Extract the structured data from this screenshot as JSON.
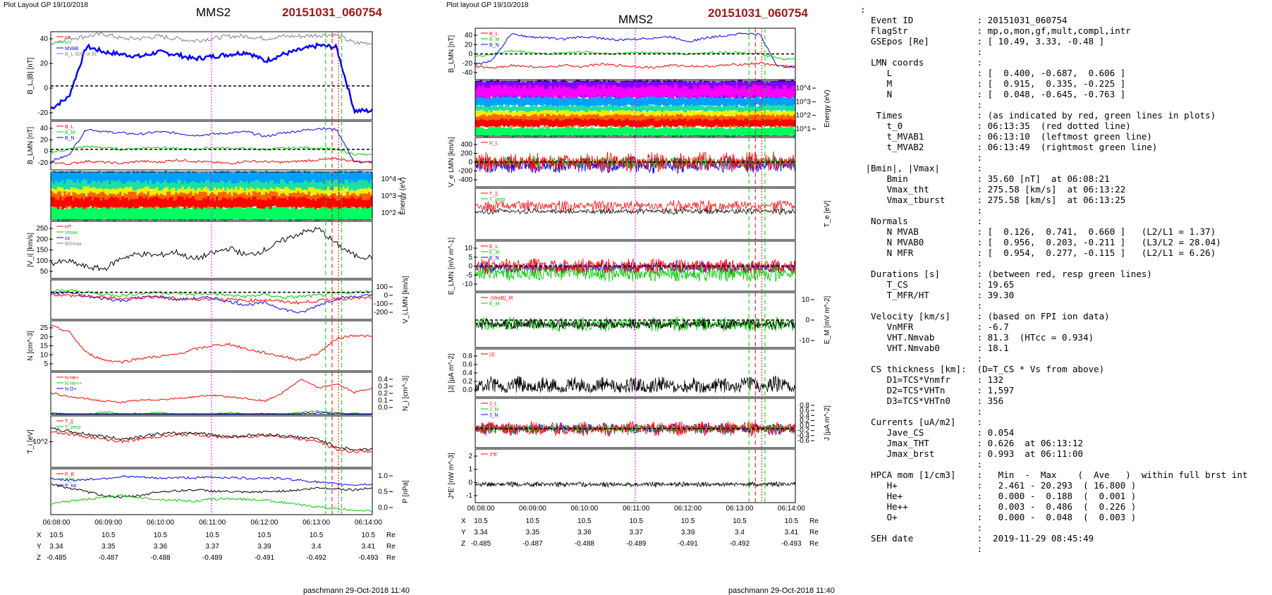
{
  "left_page": {
    "layout_label": "Plot Layout GP 19/10/2018",
    "spacecraft": "MMS2",
    "event": "20151031_060754",
    "footer": "paschmann 29-Oct-2018 11:40",
    "time_ticks": [
      "06:08:00",
      "06:09:00",
      "06:10:00",
      "06:11:00",
      "06:12:00",
      "06:13:00",
      "06:14:00"
    ],
    "pos_labels": [
      "X",
      "Y",
      "Z"
    ],
    "pos_unit": "Re",
    "pos_values": {
      "X": [
        "10.5",
        "10.5",
        "10.5",
        "10.5",
        "10.5",
        "10.5",
        "10.5"
      ],
      "Y": [
        "3.34",
        "3.35",
        "3.36",
        "3.37",
        "3.39",
        "3.4",
        "3.41"
      ],
      "Z": [
        "-0.485",
        "-0.487",
        "-0.488",
        "-0.489",
        "-0.491",
        "-0.492",
        "-0.493"
      ]
    }
  },
  "right_page": {
    "layout_label": "Plot layout GP 19/10/2018",
    "spacecraft": "MMS2",
    "event": "20151031_060754",
    "footer": "paschmann 29-Oct-2018 11:40",
    "time_ticks": [
      "06:08:00",
      "06:09:00",
      "06:10:00",
      "06:11:00",
      "06:12:00",
      "06:13:00",
      "06:14:00"
    ],
    "pos_labels": [
      "X",
      "Y",
      "Z"
    ],
    "pos_unit": "Re",
    "pos_values": {
      "X": [
        "10.5",
        "10.5",
        "10.5",
        "10.5",
        "10.5",
        "10.5",
        "10.5"
      ],
      "Y": [
        "3.34",
        "3.35",
        "3.36",
        "3.37",
        "3.39",
        "3.4",
        "3.41"
      ],
      "Z": [
        "-0.485",
        "-0.487",
        "-0.488",
        "-0.489",
        "-0.491",
        "-0.492",
        "-0.493"
      ]
    }
  },
  "info_lines": [
    ":",
    "  Event ID            : 20151031_060754",
    "  FlagStr             : mp,o,mon,gf,mult,compl,intr",
    "  GSEpos [Re]         : [ 10.49, 3.33, -0.48 ]",
    "                      :",
    "  LMN coords          :",
    "     L                : [  0.400, -0.687,  0.606 ]",
    "     M                : [  0.915,  0.335, -0.225 ]",
    "     N                : [  0.048, -0.645, -0.763 ]",
    "                      :",
    "   Times              : (as indicated by red, green lines in plots)",
    "     t_0              : 06:13:35  (red dotted line)",
    "     t_MVAB1          : 06:13:10  (leftmost green line)",
    "     t_MVAB2          : 06:13:49  (rightmost green line)",
    "                      :",
    " |Bmin|, |Vmax|       :",
    "     Bmin             : 35.60 [nT]  at 06:08:21",
    "     Vmax_tht         : 275.58 [km/s]  at 06:13:22",
    "     Vmax_tburst      : 275.58 [km/s]  at 06:13:25",
    "                      :",
    "  Normals             :",
    "     N MVAB           : [  0.126,  0.741,  0.660 ]   (L2/L1 = 1.37)",
    "     N MVAB0          : [  0.956,  0.203, -0.211 ]   (L3/L2 = 28.04)",
    "     N MFR            : [  0.954,  0.277, -0.115 ]   (L2/L1 = 6.26)",
    "                      :",
    "  Durations [s]       : (between red, resp green lines)",
    "     T_CS             : 19.65",
    "     T_MFR/HT         : 39.30",
    "                      :",
    "  Velocity [km/s]     : (based on FPI ion data)",
    "     VnMFR            : -6.7",
    "     VHT.Nmvab        : 81.3  (HTcc = 0.934)",
    "     VHT.Nmvab0       : 18.1",
    "                      :",
    "  CS thickness [km]:  (D=T_CS * Vs from above)",
    "     D1=TCS*Vnmfr     : 132",
    "     D2=TCS*VHTn      : 1,597",
    "     D3=TCS*VHTn0     : 356",
    "                      :",
    "  Currents [uA/m2]    :",
    "     Jave_CS          : 0.054",
    "     Jmax_THT         : 0.626  at 06:13:12",
    "     Jmax_brst        : 0.993  at 06:11:00",
    "                      :",
    "  HPCA mom [1/cm3]    :   Min  -  Max    (  Ave   )  within full brst int",
    "     H+               :   2.461 - 20.293  ( 16.800 )",
    "     He+              :   0.000 -  0.188  (  0.001 )",
    "     He++             :   0.003 -  0.486  (  0.226 )",
    "     O+               :   0.000 -  0.048  (  0.003 )",
    "                      :",
    "  SEH date            :  2019-11-29 08:45:49",
    "                      :"
  ],
  "colors": {
    "event_red": "#a01818",
    "black": "#000000",
    "blue": "#0000ff",
    "green": "#00cc00",
    "red": "#ff0000",
    "gray": "#808080",
    "magenta": "#ff00ff"
  },
  "chart_data": [
    {
      "panel": "left-1",
      "type": "line",
      "ylabel": "B_L,|B| [nT]",
      "yticks": [
        "40",
        "20",
        "0",
        "-20"
      ],
      "legend": [
        "cs",
        "HT",
        "MVAB",
        "B_L 50% of BL"
      ],
      "series": [
        {
          "name": "BL",
          "color": "#0000ff",
          "values": [
            -20,
            -10,
            35,
            30,
            28,
            26,
            30,
            28,
            24,
            26,
            28,
            30,
            22,
            28,
            32,
            36,
            34,
            -22,
            -22
          ]
        },
        {
          "name": "|B|",
          "color": "#808080",
          "values": [
            38,
            42,
            44,
            46,
            42,
            42,
            44,
            42,
            40,
            42,
            44,
            44,
            42,
            44,
            44,
            45,
            45,
            38,
            38
          ]
        }
      ],
      "ylim": [
        -30,
        48
      ]
    },
    {
      "panel": "left-2",
      "type": "line",
      "ylabel": "B_LMN [nT]",
      "yticks": [
        "40",
        "20",
        "0",
        "-20"
      ],
      "legend": [
        "B_L",
        "B_M",
        "B_N"
      ],
      "series": [
        {
          "name": "B_L",
          "color": "#0000ff",
          "values": [
            -20,
            -10,
            35,
            30,
            28,
            26,
            30,
            28,
            24,
            26,
            28,
            30,
            22,
            28,
            32,
            36,
            34,
            -22,
            -22
          ]
        },
        {
          "name": "B_M",
          "color": "#00cc00",
          "values": [
            -5,
            0,
            5,
            3,
            0,
            2,
            4,
            1,
            0,
            3,
            2,
            1,
            0,
            2,
            3,
            2,
            0,
            -8,
            -10
          ]
        },
        {
          "name": "B_N",
          "color": "#ff0000",
          "values": [
            -22,
            -25,
            -20,
            -22,
            -24,
            -20,
            -22,
            -18,
            -20,
            -22,
            -24,
            -20,
            -21,
            -22,
            -20,
            -18,
            -16,
            -20,
            -22
          ]
        }
      ],
      "ylim": [
        -35,
        48
      ]
    },
    {
      "panel": "left-3",
      "type": "heatmap",
      "ylabel": "Energy (eV)",
      "yticks": [
        "10^4",
        "10^3",
        "10^2"
      ]
    },
    {
      "panel": "left-4",
      "type": "line",
      "ylabel": "|V_i| [km/s]",
      "yticks": [
        "250",
        "200",
        "150",
        "100",
        "50"
      ],
      "legend": [
        "HT",
        "Vmax",
        "cs",
        "tbVmax"
      ],
      "series": [
        {
          "name": "|Vi|",
          "color": "#000000",
          "values": [
            80,
            90,
            60,
            50,
            110,
            130,
            120,
            140,
            100,
            130,
            160,
            120,
            150,
            200,
            240,
            260,
            180,
            120,
            110
          ]
        }
      ],
      "ylim": [
        0,
        300
      ]
    },
    {
      "panel": "left-5",
      "type": "line",
      "ylabel": "V_i,LMN [km/s]",
      "yticks": [
        "100",
        "0",
        "-100",
        "-200"
      ],
      "series": [
        {
          "name": "V_L",
          "color": "#0000ff",
          "values": [
            -10,
            0,
            -40,
            -60,
            -80,
            -50,
            -40,
            -70,
            -60,
            -50,
            -90,
            -120,
            -100,
            -160,
            -200,
            -120,
            -60,
            -40,
            -30
          ]
        },
        {
          "name": "V_M",
          "color": "#00cc00",
          "values": [
            10,
            20,
            0,
            -20,
            -30,
            -10,
            0,
            -10,
            -20,
            -10,
            -30,
            -40,
            -20,
            -50,
            -40,
            -30,
            -10,
            0,
            10
          ]
        },
        {
          "name": "V_N",
          "color": "#ff0000",
          "values": [
            -20,
            -30,
            -40,
            -50,
            -60,
            -50,
            -40,
            -60,
            -70,
            -60,
            -70,
            -80,
            -70,
            -90,
            -100,
            -80,
            -60,
            -60,
            -50
          ]
        }
      ],
      "ylim": [
        -260,
        120
      ]
    },
    {
      "panel": "left-6",
      "type": "line",
      "ylabel": "N [cm^-3]",
      "yticks": [
        "25",
        "20",
        "15",
        "10",
        "5"
      ],
      "series": [
        {
          "name": "N",
          "color": "#ff0000",
          "values": [
            25,
            22,
            10,
            6,
            5,
            7,
            8,
            9,
            12,
            14,
            15,
            12,
            10,
            8,
            6,
            10,
            18,
            20,
            19
          ]
        }
      ],
      "ylim": [
        0,
        28
      ]
    },
    {
      "panel": "left-7",
      "type": "line",
      "ylabel": "N_i [cm^-3]",
      "yticks": [
        "0.4",
        "0.3",
        "0.2",
        "0.1",
        "0.0"
      ],
      "legend": [
        "N He+",
        "N He++",
        "N O+"
      ],
      "series": [
        {
          "name": "N He+",
          "color": "#00cc00",
          "values": [
            0.02,
            0.0,
            0.0,
            0.03,
            0.0,
            0.0,
            0.02,
            0.0,
            0.0,
            0.0,
            0.02,
            0.0,
            0.01,
            0.0,
            0.03,
            0.04,
            0.02,
            0.01,
            0.0
          ]
        },
        {
          "name": "N He++",
          "color": "#ff0000",
          "values": [
            0.25,
            0.2,
            0.18,
            0.15,
            0.14,
            0.16,
            0.17,
            0.18,
            0.2,
            0.22,
            0.2,
            0.18,
            0.15,
            0.25,
            0.4,
            0.3,
            0.35,
            0.25,
            0.3
          ]
        },
        {
          "name": "N O+",
          "color": "#0000ff",
          "values": [
            0.01,
            0.0,
            0.0,
            0.0,
            0.0,
            0.01,
            0.0,
            0.0,
            0.0,
            0.0,
            0.0,
            0.0,
            0.0,
            0.0,
            0.01,
            0.02,
            0.01,
            0.0,
            0.0
          ]
        }
      ],
      "ylim": [
        0,
        0.48
      ]
    },
    {
      "panel": "left-8",
      "type": "line",
      "ylabel": "T_i [eV]",
      "yticks": [
        "10^2"
      ],
      "legend": [
        "T_||",
        "T_perp"
      ],
      "series": [
        {
          "name": "T_par",
          "color": "#ff0000",
          "values": [
            0.7,
            0.65,
            0.6,
            0.55,
            0.5,
            0.55,
            0.6,
            0.62,
            0.65,
            0.6,
            0.58,
            0.6,
            0.62,
            0.6,
            0.55,
            0.5,
            0.35,
            0.3,
            0.32
          ]
        },
        {
          "name": "T_perp",
          "color": "#000000",
          "values": [
            0.75,
            0.7,
            0.65,
            0.6,
            0.55,
            0.6,
            0.65,
            0.66,
            0.68,
            0.64,
            0.6,
            0.62,
            0.64,
            0.62,
            0.58,
            0.55,
            0.4,
            0.34,
            0.36
          ]
        }
      ],
      "ylim": [
        0,
        1
      ]
    },
    {
      "panel": "left-9",
      "type": "line",
      "ylabel": "P [nPa]",
      "yticks": [
        "1.0",
        "0.5",
        "0.0"
      ],
      "legend": [
        "P_B",
        "P_th",
        "P_tot"
      ],
      "series": [
        {
          "name": "P_tot",
          "color": "#0000ff",
          "values": [
            0.95,
            0.9,
            0.92,
            0.95,
            1.0,
            0.98,
            0.95,
            0.97,
            0.96,
            0.98,
            0.97,
            0.95,
            0.96,
            0.94,
            0.9,
            0.85,
            0.8,
            0.78,
            0.8
          ]
        },
        {
          "name": "P_th",
          "color": "#000000",
          "values": [
            0.8,
            0.7,
            0.6,
            0.5,
            0.45,
            0.5,
            0.6,
            0.62,
            0.65,
            0.62,
            0.6,
            0.58,
            0.6,
            0.62,
            0.65,
            0.7,
            0.68,
            0.65,
            0.7
          ]
        },
        {
          "name": "P_B",
          "color": "#00cc00",
          "values": [
            0.3,
            0.35,
            0.4,
            0.45,
            0.5,
            0.45,
            0.4,
            0.38,
            0.35,
            0.4,
            0.42,
            0.4,
            0.38,
            0.32,
            0.25,
            0.2,
            0.15,
            0.12,
            0.1
          ]
        }
      ],
      "ylim": [
        0,
        1.2
      ]
    },
    {
      "panel": "right-1",
      "type": "line",
      "ylabel": "B_LMN [nT]",
      "yticks": [
        "40",
        "20",
        "0",
        "-20",
        "-40"
      ],
      "legend": [
        "B_L",
        "B_M",
        "B_N"
      ],
      "series": [
        {
          "name": "B_L",
          "color": "#0000ff",
          "values": [
            -20,
            -10,
            35,
            30,
            28,
            26,
            30,
            28,
            24,
            26,
            28,
            30,
            22,
            28,
            32,
            36,
            34,
            -22,
            -22
          ]
        },
        {
          "name": "B_M",
          "color": "#00cc00",
          "values": [
            -5,
            0,
            5,
            3,
            0,
            2,
            4,
            1,
            0,
            3,
            2,
            1,
            0,
            2,
            3,
            2,
            0,
            -8,
            -10
          ]
        },
        {
          "name": "B_N",
          "color": "#ff0000",
          "values": [
            -22,
            -25,
            -20,
            -22,
            -24,
            -20,
            -22,
            -18,
            -20,
            -22,
            -24,
            -20,
            -21,
            -22,
            -20,
            -18,
            -16,
            -20,
            -22
          ]
        }
      ],
      "ylim": [
        -45,
        45
      ]
    },
    {
      "panel": "right-2",
      "type": "heatmap",
      "ylabel": "Energy (eV)",
      "yticks": [
        "10^4",
        "10^3",
        "10^2",
        "10^1"
      ]
    },
    {
      "panel": "right-3",
      "type": "line",
      "ylabel": "V_e LMN [km/s]",
      "yticks": [
        "400",
        "200",
        "0",
        "-200",
        "-400"
      ],
      "legend": [
        "V_L"
      ],
      "ylim": [
        -500,
        500
      ]
    },
    {
      "panel": "right-4",
      "type": "line",
      "ylabel": "T_e [eV]",
      "legend": [
        "T_||",
        "T_perp"
      ],
      "ylim": [
        0,
        1
      ]
    },
    {
      "panel": "right-5",
      "type": "line",
      "ylabel": "E_LMN [mV m^-1]",
      "yticks": [
        "10",
        "5",
        "0",
        "-5",
        "-10"
      ],
      "legend": [
        "E_L",
        "E_M",
        "E_N"
      ],
      "ylim": [
        -12,
        12
      ]
    },
    {
      "panel": "right-6",
      "type": "line",
      "ylabel": "E_M [mV m^-2]",
      "yticks": [
        "10",
        "0",
        "-10"
      ],
      "legend": [
        "-(VexB)_M",
        "E_M"
      ],
      "ylim": [
        -15,
        15
      ]
    },
    {
      "panel": "right-7",
      "type": "line",
      "ylabel": "|J| [µA m^-2]",
      "yticks": [
        "0.8",
        "0.6",
        "0.4",
        "0.2",
        "0.0"
      ],
      "legend": [
        "|J|"
      ],
      "ylim": [
        0,
        1
      ]
    },
    {
      "panel": "right-8",
      "type": "line",
      "ylabel": "J [µA m^-2]",
      "yticks": [
        "0.8",
        "0.6",
        "0.4",
        "0.2",
        "0.0",
        "-0.2",
        "-0.4",
        "-0.6"
      ],
      "legend": [
        "J_L",
        "J_M",
        "J_N"
      ],
      "ylim": [
        -0.7,
        0.9
      ]
    },
    {
      "panel": "right-9",
      "type": "line",
      "ylabel": "J*E' [nW m^-3]",
      "yticks": [
        "2",
        "1",
        "0",
        "-1"
      ],
      "legend": [
        "J*E'"
      ],
      "ylim": [
        -1.2,
        2.8
      ]
    }
  ]
}
